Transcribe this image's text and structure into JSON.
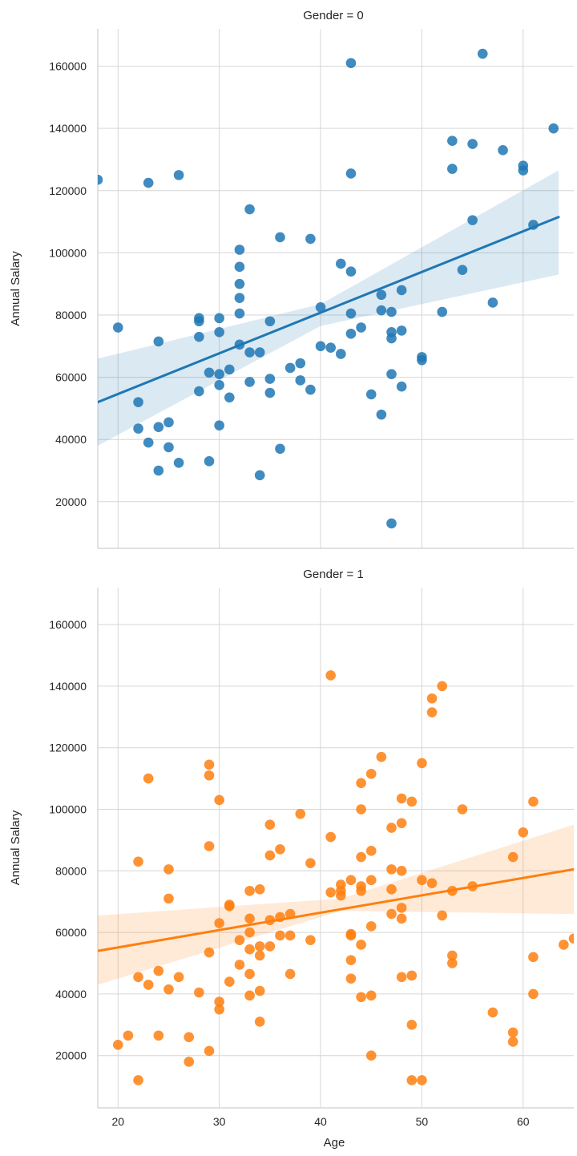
{
  "chart_data": [
    {
      "type": "scatter",
      "title": "Gender = 0",
      "xlabel": "",
      "ylabel": "Annual Salary",
      "xlim": [
        18,
        65
      ],
      "ylim": [
        5000,
        172000
      ],
      "xticks": [
        20,
        30,
        40,
        50,
        60
      ],
      "show_xtick_labels": false,
      "yticks": [
        20000,
        40000,
        60000,
        80000,
        100000,
        120000,
        140000,
        160000
      ],
      "grid": true,
      "color": "#1f77b4",
      "points": [
        [
          18,
          123500
        ],
        [
          20,
          76000
        ],
        [
          22,
          52000
        ],
        [
          22,
          43500
        ],
        [
          23,
          122500
        ],
        [
          23,
          39000
        ],
        [
          24,
          71500
        ],
        [
          24,
          44000
        ],
        [
          24,
          30000
        ],
        [
          25,
          45500
        ],
        [
          25,
          37500
        ],
        [
          26,
          125000
        ],
        [
          26,
          32500
        ],
        [
          28,
          79000
        ],
        [
          28,
          78000
        ],
        [
          28,
          73000
        ],
        [
          28,
          55500
        ],
        [
          29,
          61500
        ],
        [
          29,
          33000
        ],
        [
          30,
          79000
        ],
        [
          30,
          74500
        ],
        [
          30,
          61000
        ],
        [
          30,
          57500
        ],
        [
          30,
          44500
        ],
        [
          31,
          62500
        ],
        [
          31,
          53500
        ],
        [
          32,
          101000
        ],
        [
          32,
          95500
        ],
        [
          32,
          90000
        ],
        [
          32,
          85500
        ],
        [
          32,
          80500
        ],
        [
          32,
          70500
        ],
        [
          33,
          114000
        ],
        [
          33,
          68000
        ],
        [
          33,
          58500
        ],
        [
          34,
          68000
        ],
        [
          34,
          28500
        ],
        [
          35,
          78000
        ],
        [
          35,
          59500
        ],
        [
          35,
          55000
        ],
        [
          36,
          105000
        ],
        [
          36,
          37000
        ],
        [
          37,
          63000
        ],
        [
          38,
          64500
        ],
        [
          38,
          59000
        ],
        [
          39,
          104500
        ],
        [
          39,
          56000
        ],
        [
          40,
          82500
        ],
        [
          40,
          70000
        ],
        [
          41,
          69500
        ],
        [
          42,
          96500
        ],
        [
          42,
          67500
        ],
        [
          43,
          161000
        ],
        [
          43,
          125500
        ],
        [
          43,
          94000
        ],
        [
          43,
          80500
        ],
        [
          43,
          74000
        ],
        [
          44,
          76000
        ],
        [
          45,
          54500
        ],
        [
          46,
          86500
        ],
        [
          46,
          81500
        ],
        [
          46,
          48000
        ],
        [
          47,
          81000
        ],
        [
          47,
          74500
        ],
        [
          47,
          72500
        ],
        [
          47,
          61000
        ],
        [
          47,
          13000
        ],
        [
          48,
          88000
        ],
        [
          48,
          75000
        ],
        [
          48,
          57000
        ],
        [
          50,
          66500
        ],
        [
          50,
          65500
        ],
        [
          52,
          81000
        ],
        [
          53,
          136000
        ],
        [
          53,
          127000
        ],
        [
          54,
          94500
        ],
        [
          55,
          135000
        ],
        [
          55,
          110500
        ],
        [
          56,
          164000
        ],
        [
          57,
          84000
        ],
        [
          58,
          133000
        ],
        [
          60,
          128000
        ],
        [
          60,
          126500
        ],
        [
          61,
          109000
        ],
        [
          63,
          140000
        ]
      ],
      "regression": {
        "x": [
          18,
          63.5
        ],
        "y": [
          52000,
          111500
        ]
      },
      "ci_upper": [
        [
          18,
          66000
        ],
        [
          40,
          83500
        ],
        [
          63.5,
          126500
        ]
      ],
      "ci_lower": [
        [
          18,
          38000
        ],
        [
          40,
          76500
        ],
        [
          63.5,
          93000
        ]
      ]
    },
    {
      "type": "scatter",
      "title": "Gender = 1",
      "xlabel": "Age",
      "ylabel": "Annual Salary",
      "xlim": [
        18,
        65
      ],
      "ylim": [
        3000,
        172000
      ],
      "xticks": [
        20,
        30,
        40,
        50,
        60
      ],
      "show_xtick_labels": true,
      "yticks": [
        20000,
        40000,
        60000,
        80000,
        100000,
        120000,
        140000,
        160000
      ],
      "grid": true,
      "color": "#ff7f0e",
      "points": [
        [
          20,
          23500
        ],
        [
          21,
          26500
        ],
        [
          22,
          83000
        ],
        [
          22,
          45500
        ],
        [
          22,
          12000
        ],
        [
          23,
          110000
        ],
        [
          23,
          43000
        ],
        [
          24,
          47500
        ],
        [
          24,
          26500
        ],
        [
          25,
          80500
        ],
        [
          25,
          71000
        ],
        [
          25,
          41500
        ],
        [
          26,
          45500
        ],
        [
          27,
          26000
        ],
        [
          27,
          18000
        ],
        [
          28,
          40500
        ],
        [
          29,
          114500
        ],
        [
          29,
          111000
        ],
        [
          29,
          88000
        ],
        [
          29,
          53500
        ],
        [
          29,
          21500
        ],
        [
          30,
          103000
        ],
        [
          30,
          63000
        ],
        [
          30,
          37500
        ],
        [
          30,
          35000
        ],
        [
          31,
          69000
        ],
        [
          31,
          68500
        ],
        [
          31,
          44000
        ],
        [
          32,
          49500
        ],
        [
          32,
          57500
        ],
        [
          33,
          73500
        ],
        [
          33,
          64500
        ],
        [
          33,
          60000
        ],
        [
          33,
          54500
        ],
        [
          33,
          46500
        ],
        [
          33,
          39500
        ],
        [
          34,
          74000
        ],
        [
          34,
          55500
        ],
        [
          34,
          52500
        ],
        [
          34,
          41000
        ],
        [
          34,
          31000
        ],
        [
          35,
          95000
        ],
        [
          35,
          85000
        ],
        [
          35,
          64000
        ],
        [
          35,
          55500
        ],
        [
          36,
          87000
        ],
        [
          36,
          65000
        ],
        [
          36,
          59000
        ],
        [
          37,
          66000
        ],
        [
          37,
          59000
        ],
        [
          37,
          46500
        ],
        [
          38,
          98500
        ],
        [
          39,
          82500
        ],
        [
          39,
          57500
        ],
        [
          41,
          143500
        ],
        [
          41,
          91000
        ],
        [
          41,
          73000
        ],
        [
          42,
          75500
        ],
        [
          42,
          73500
        ],
        [
          42,
          72000
        ],
        [
          43,
          77000
        ],
        [
          43,
          59500
        ],
        [
          43,
          59000
        ],
        [
          43,
          51000
        ],
        [
          43,
          45000
        ],
        [
          44,
          108500
        ],
        [
          44,
          100000
        ],
        [
          44,
          84500
        ],
        [
          44,
          75000
        ],
        [
          44,
          73500
        ],
        [
          44,
          56000
        ],
        [
          44,
          39000
        ],
        [
          45,
          111500
        ],
        [
          45,
          86500
        ],
        [
          45,
          77000
        ],
        [
          45,
          62000
        ],
        [
          45,
          39500
        ],
        [
          45,
          20000
        ],
        [
          46,
          117000
        ],
        [
          47,
          94000
        ],
        [
          47,
          80500
        ],
        [
          47,
          74000
        ],
        [
          47,
          66000
        ],
        [
          48,
          103500
        ],
        [
          48,
          95500
        ],
        [
          48,
          80000
        ],
        [
          48,
          68000
        ],
        [
          48,
          64500
        ],
        [
          48,
          45500
        ],
        [
          49,
          102500
        ],
        [
          49,
          46000
        ],
        [
          49,
          30000
        ],
        [
          49,
          12000
        ],
        [
          50,
          115000
        ],
        [
          50,
          77000
        ],
        [
          50,
          12000
        ],
        [
          51,
          136000
        ],
        [
          51,
          131500
        ],
        [
          51,
          76000
        ],
        [
          52,
          140000
        ],
        [
          52,
          65500
        ],
        [
          53,
          52500
        ],
        [
          53,
          50000
        ],
        [
          53,
          73500
        ],
        [
          54,
          100000
        ],
        [
          55,
          75000
        ],
        [
          57,
          34000
        ],
        [
          59,
          84500
        ],
        [
          59,
          27500
        ],
        [
          59,
          24500
        ],
        [
          60,
          92500
        ],
        [
          61,
          102500
        ],
        [
          61,
          52000
        ],
        [
          61,
          40000
        ],
        [
          64,
          56000
        ],
        [
          65,
          58000
        ]
      ],
      "regression": {
        "x": [
          18,
          65
        ],
        "y": [
          54000,
          80500
        ]
      },
      "ci_upper": [
        [
          18,
          65500
        ],
        [
          42,
          71000
        ],
        [
          65,
          95000
        ]
      ],
      "ci_lower": [
        [
          18,
          43000
        ],
        [
          42,
          67000
        ],
        [
          65,
          66000
        ]
      ]
    }
  ]
}
